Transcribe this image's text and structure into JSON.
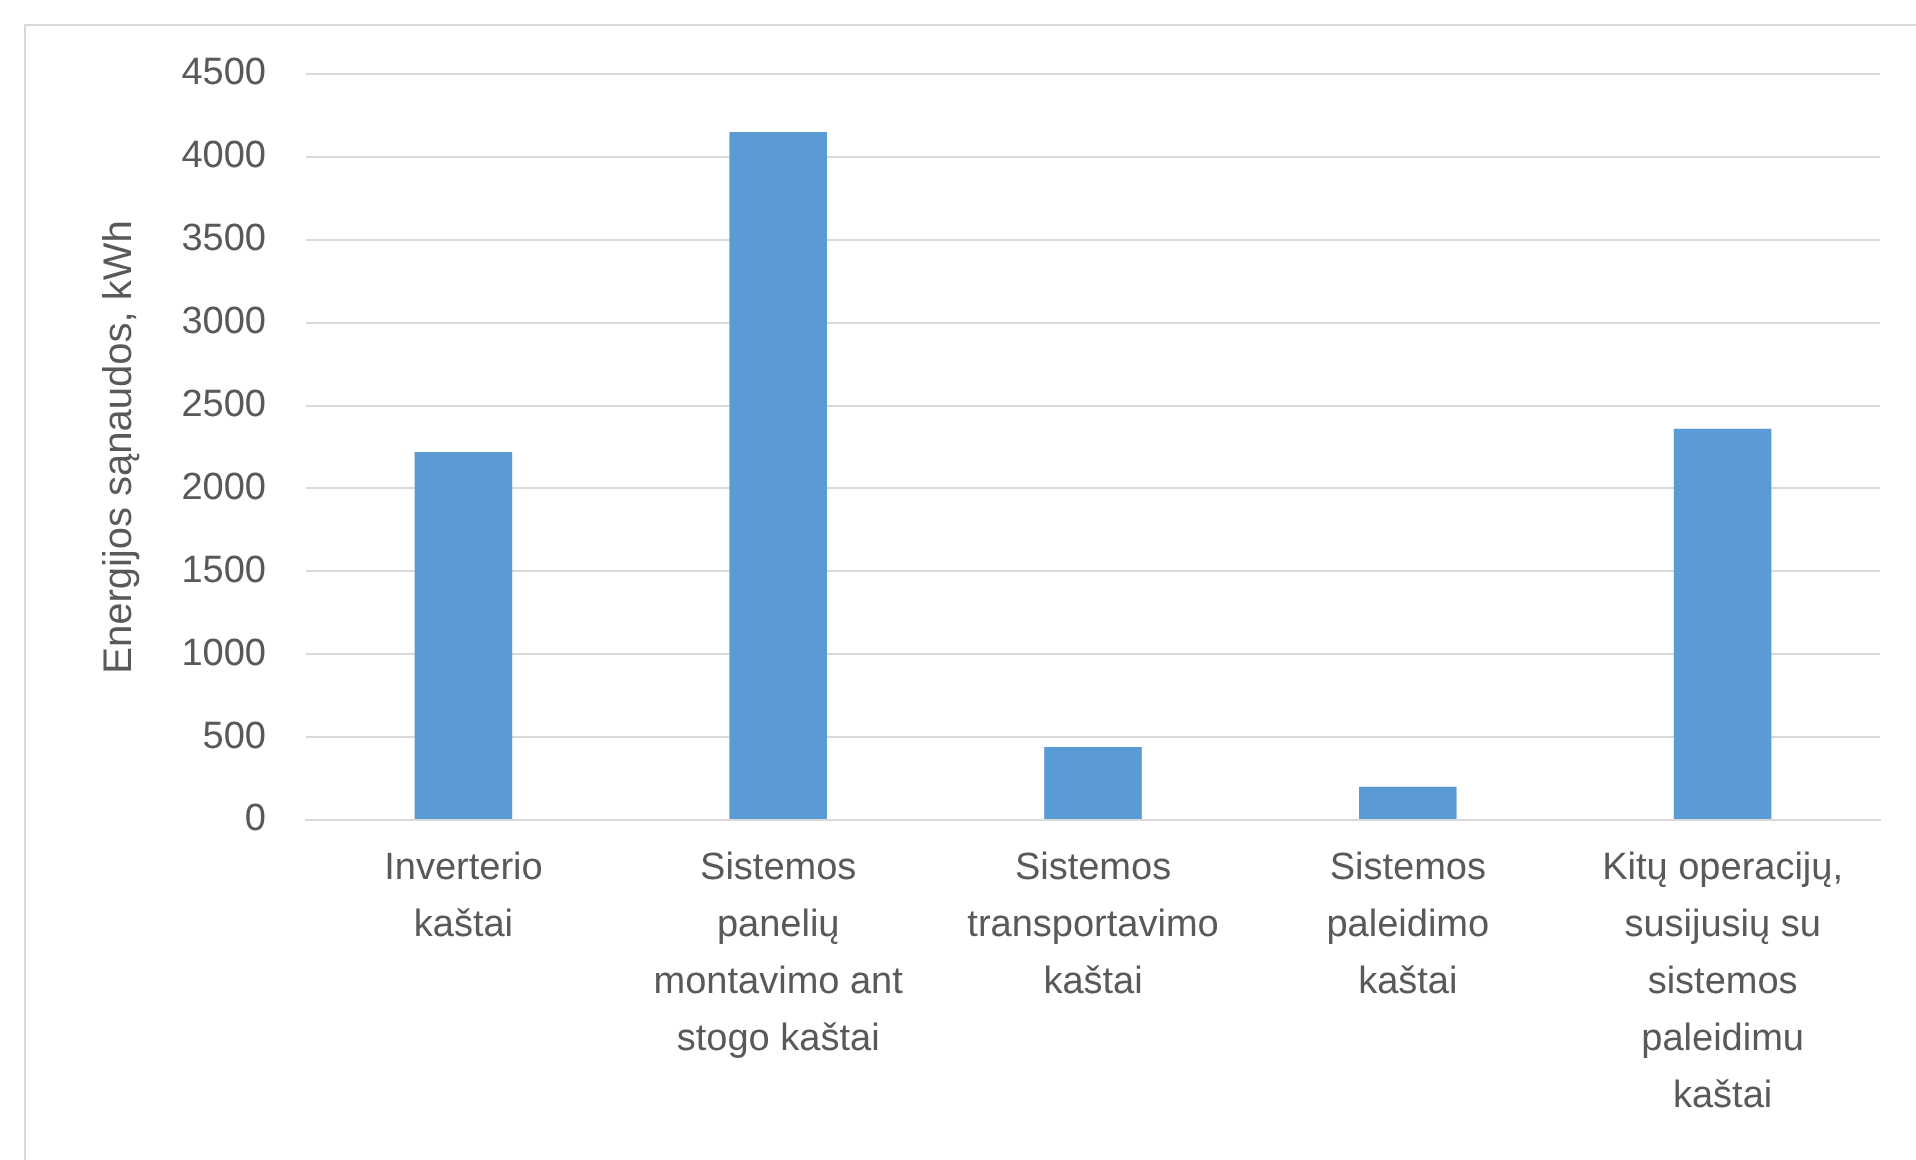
{
  "chart_data": {
    "type": "bar",
    "ylabel": "Energijos sąnaudos, kWh",
    "categories": [
      "Inverterio kaštai",
      "Sistemos panelių montavimo ant stogo kaštai",
      "Sistemos transportavimo kaštai",
      "Sistemos paleidimo kaštai",
      "Kitų operacijų, susijusių su sistemos paleidimu kaštai"
    ],
    "values": [
      2220,
      4150,
      440,
      200,
      2360
    ],
    "color": "#5b9bd5",
    "ylim": [
      0,
      4500
    ],
    "yticks": [
      0,
      500,
      1000,
      1500,
      2000,
      2500,
      3000,
      3500,
      4000,
      4500
    ],
    "grid": "y"
  }
}
